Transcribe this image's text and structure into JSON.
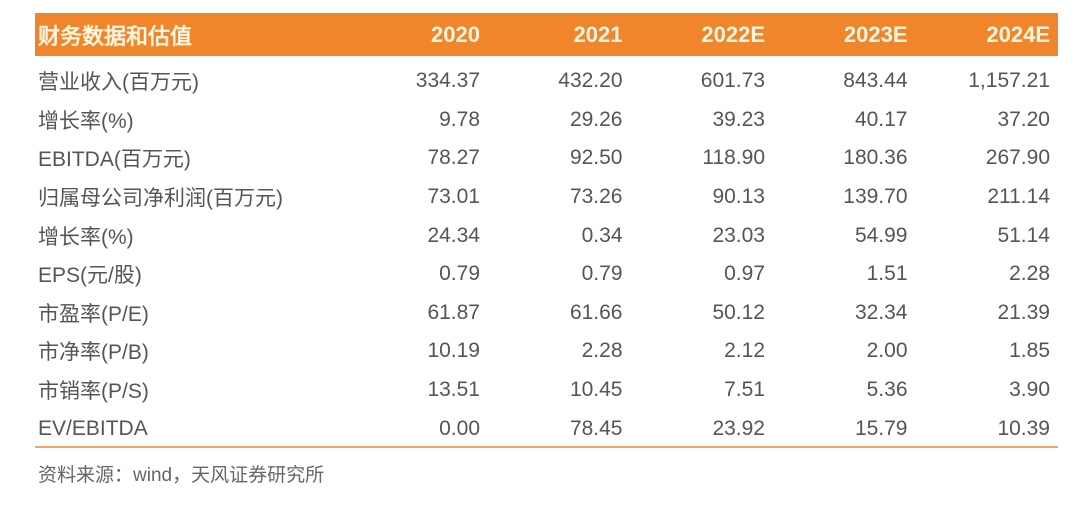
{
  "table": {
    "title": "财务数据和估值",
    "columns": [
      "2020",
      "2021",
      "2022E",
      "2023E",
      "2024E"
    ],
    "rows": [
      {
        "label": "营业收入(百万元)",
        "values": [
          "334.37",
          "432.20",
          "601.73",
          "843.44",
          "1,157.21"
        ]
      },
      {
        "label": "增长率(%)",
        "values": [
          "9.78",
          "29.26",
          "39.23",
          "40.17",
          "37.20"
        ]
      },
      {
        "label": "EBITDA(百万元)",
        "values": [
          "78.27",
          "92.50",
          "118.90",
          "180.36",
          "267.90"
        ]
      },
      {
        "label": "归属母公司净利润(百万元)",
        "values": [
          "73.01",
          "73.26",
          "90.13",
          "139.70",
          "211.14"
        ]
      },
      {
        "label": "增长率(%)",
        "values": [
          "24.34",
          "0.34",
          "23.03",
          "54.99",
          "51.14"
        ]
      },
      {
        "label": "EPS(元/股)",
        "values": [
          "0.79",
          "0.79",
          "0.97",
          "1.51",
          "2.28"
        ]
      },
      {
        "label": "市盈率(P/E)",
        "values": [
          "61.87",
          "61.66",
          "50.12",
          "32.34",
          "21.39"
        ]
      },
      {
        "label": "市净率(P/B)",
        "values": [
          "10.19",
          "2.28",
          "2.12",
          "2.00",
          "1.85"
        ]
      },
      {
        "label": "市销率(P/S)",
        "values": [
          "13.51",
          "10.45",
          "7.51",
          "5.36",
          "3.90"
        ]
      },
      {
        "label": "EV/EBITDA",
        "values": [
          "0.00",
          "78.45",
          "23.92",
          "15.79",
          "10.39"
        ]
      }
    ]
  },
  "source": "资料来源：wind，天风证券研究所",
  "colors": {
    "header_bg": "#f0852c",
    "header_text": "#fff6e0",
    "rule": "#f0a766"
  }
}
